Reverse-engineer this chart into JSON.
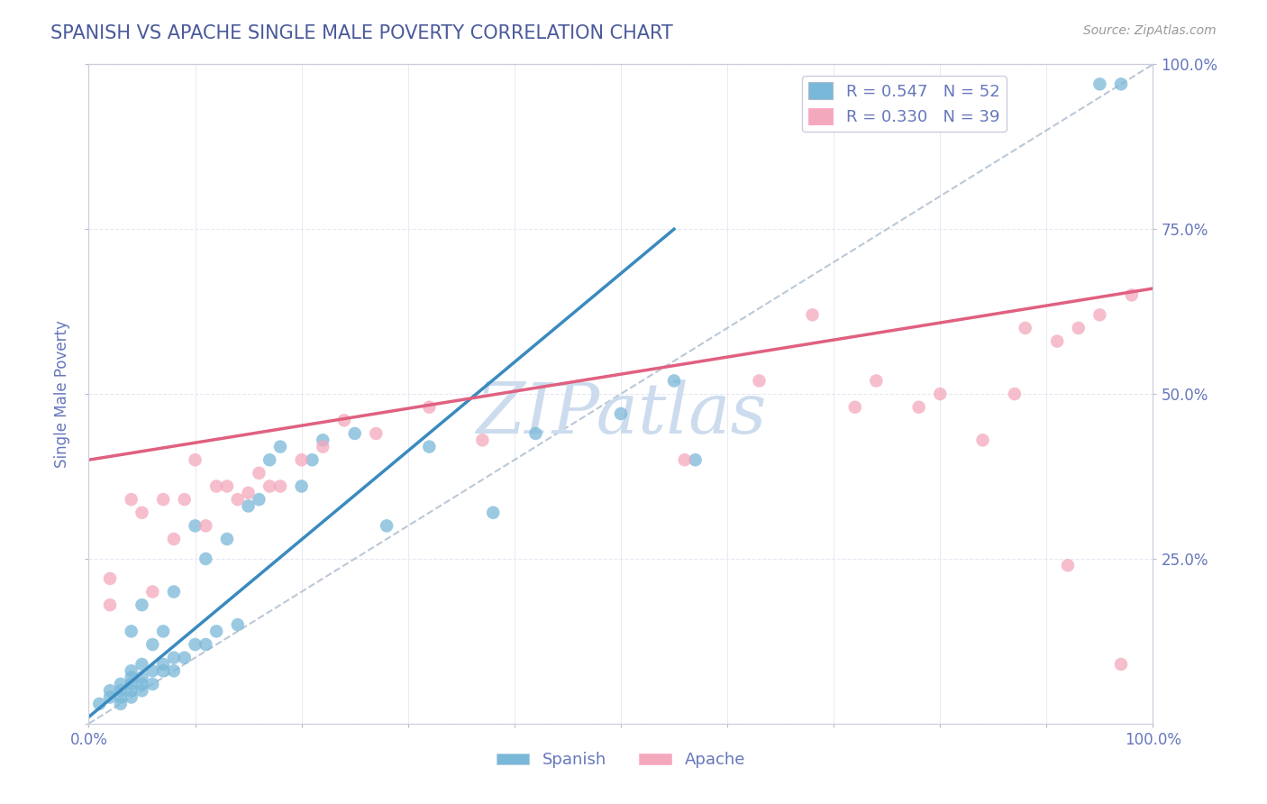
{
  "title": "SPANISH VS APACHE SINGLE MALE POVERTY CORRELATION CHART",
  "source": "Source: ZipAtlas.com",
  "ylabel": "Single Male Poverty",
  "xlim": [
    0,
    1
  ],
  "ylim": [
    0,
    1
  ],
  "xticks": [
    0,
    0.1,
    0.2,
    0.3,
    0.4,
    0.5,
    0.6,
    0.7,
    0.8,
    0.9,
    1.0
  ],
  "xtick_labels_show": {
    "0": "0.0%",
    "1.0": "100.0%"
  },
  "yticks": [
    0,
    0.25,
    0.5,
    0.75,
    1.0
  ],
  "legend1_label": "R = 0.547   N = 52",
  "legend2_label": "R = 0.330   N = 39",
  "legend_bottom_label1": "Spanish",
  "legend_bottom_label2": "Apache",
  "blue_color": "#7ab8d9",
  "pink_color": "#f4a8bc",
  "title_color": "#4a5a9a",
  "axis_color": "#6677bb",
  "watermark_color": "#ccdcee",
  "spanish_x": [
    0.01,
    0.02,
    0.02,
    0.03,
    0.03,
    0.03,
    0.03,
    0.04,
    0.04,
    0.04,
    0.04,
    0.04,
    0.04,
    0.05,
    0.05,
    0.05,
    0.05,
    0.05,
    0.06,
    0.06,
    0.06,
    0.07,
    0.07,
    0.07,
    0.08,
    0.08,
    0.08,
    0.09,
    0.1,
    0.1,
    0.11,
    0.11,
    0.12,
    0.13,
    0.14,
    0.15,
    0.16,
    0.17,
    0.18,
    0.2,
    0.21,
    0.22,
    0.25,
    0.28,
    0.32,
    0.38,
    0.42,
    0.5,
    0.55,
    0.57,
    0.95,
    0.97
  ],
  "spanish_y": [
    0.03,
    0.04,
    0.05,
    0.03,
    0.04,
    0.05,
    0.06,
    0.04,
    0.05,
    0.06,
    0.07,
    0.08,
    0.14,
    0.05,
    0.06,
    0.07,
    0.09,
    0.18,
    0.06,
    0.08,
    0.12,
    0.08,
    0.09,
    0.14,
    0.08,
    0.1,
    0.2,
    0.1,
    0.12,
    0.3,
    0.12,
    0.25,
    0.14,
    0.28,
    0.15,
    0.33,
    0.34,
    0.4,
    0.42,
    0.36,
    0.4,
    0.43,
    0.44,
    0.3,
    0.42,
    0.32,
    0.44,
    0.47,
    0.52,
    0.4,
    0.97,
    0.97
  ],
  "apache_x": [
    0.02,
    0.02,
    0.04,
    0.05,
    0.06,
    0.07,
    0.08,
    0.09,
    0.1,
    0.11,
    0.12,
    0.13,
    0.14,
    0.15,
    0.16,
    0.17,
    0.18,
    0.2,
    0.22,
    0.24,
    0.27,
    0.32,
    0.37,
    0.56,
    0.63,
    0.68,
    0.72,
    0.74,
    0.78,
    0.8,
    0.84,
    0.87,
    0.88,
    0.91,
    0.92,
    0.93,
    0.95,
    0.97,
    0.98
  ],
  "apache_y": [
    0.18,
    0.22,
    0.34,
    0.32,
    0.2,
    0.34,
    0.28,
    0.34,
    0.4,
    0.3,
    0.36,
    0.36,
    0.34,
    0.35,
    0.38,
    0.36,
    0.36,
    0.4,
    0.42,
    0.46,
    0.44,
    0.48,
    0.43,
    0.4,
    0.52,
    0.62,
    0.48,
    0.52,
    0.48,
    0.5,
    0.43,
    0.5,
    0.6,
    0.58,
    0.24,
    0.6,
    0.62,
    0.09,
    0.65
  ],
  "blue_line_x": [
    0.0,
    0.55
  ],
  "blue_line_y": [
    0.01,
    0.75
  ],
  "pink_line_x": [
    0.0,
    1.0
  ],
  "pink_line_y": [
    0.4,
    0.66
  ],
  "diag_line_x": [
    0.0,
    1.0
  ],
  "diag_line_y": [
    0.0,
    1.0
  ],
  "right_ytick_labels": [
    "25.0%",
    "50.0%",
    "75.0%",
    "100.0%"
  ],
  "right_ytick_positions": [
    0.25,
    0.5,
    0.75,
    1.0
  ],
  "grid_color": "#e0e0ee",
  "grid_h_color": "#e8e8f4"
}
